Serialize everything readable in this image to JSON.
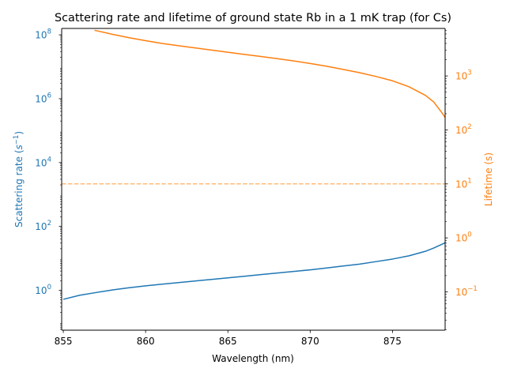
{
  "chart_data": {
    "type": "line",
    "title": "Scattering rate and lifetime of ground state Rb in a 1 mK trap (for Cs)",
    "xlabel": "Wavelength (nm)",
    "ylabel_left_parts": {
      "base": "Scattering rate (",
      "sym": "s",
      "exp": "−1",
      "close": ")"
    },
    "ylabel_right": "Lifetime (s)",
    "xlim": [
      854.9,
      878.2
    ],
    "x_ticks": [
      855,
      860,
      865,
      870,
      875
    ],
    "x_tick_labels": [
      "855",
      "860",
      "865",
      "870",
      "875"
    ],
    "y_left": {
      "scale": "log",
      "ylim_log10": [
        -1.25,
        8.2
      ],
      "ticks": [
        {
          "base": "10",
          "exp": "0",
          "log": 0
        },
        {
          "base": "10",
          "exp": "2",
          "log": 2
        },
        {
          "base": "10",
          "exp": "4",
          "log": 4
        },
        {
          "base": "10",
          "exp": "6",
          "log": 6
        },
        {
          "base": "10",
          "exp": "8",
          "log": 8
        }
      ]
    },
    "y_right": {
      "scale": "log",
      "ylim_log10": [
        -1.71,
        3.88
      ],
      "ticks": [
        {
          "base": "10",
          "exp": "−1",
          "log": -1
        },
        {
          "base": "10",
          "exp": "0",
          "log": 0
        },
        {
          "base": "10",
          "exp": "1",
          "log": 1
        },
        {
          "base": "10",
          "exp": "2",
          "log": 2
        },
        {
          "base": "10",
          "exp": "3",
          "log": 3
        }
      ]
    },
    "series": [
      {
        "axis": "left",
        "color": "#1f77b4",
        "points": [
          [
            855.0,
            0.52
          ],
          [
            856.0,
            0.7
          ],
          [
            857.0,
            0.85
          ],
          [
            858.0,
            1.03
          ],
          [
            859.0,
            1.2
          ],
          [
            860.0,
            1.38
          ],
          [
            861.0,
            1.55
          ],
          [
            862.0,
            1.74
          ],
          [
            863.0,
            1.95
          ],
          [
            864.0,
            2.19
          ],
          [
            865.0,
            2.45
          ],
          [
            866.0,
            2.75
          ],
          [
            867.0,
            3.1
          ],
          [
            868.0,
            3.47
          ],
          [
            869.0,
            3.89
          ],
          [
            870.0,
            4.37
          ],
          [
            871.0,
            5.0
          ],
          [
            872.0,
            5.75
          ],
          [
            873.0,
            6.6
          ],
          [
            874.0,
            7.9
          ],
          [
            875.0,
            9.5
          ],
          [
            876.0,
            12.0
          ],
          [
            877.0,
            16.6
          ],
          [
            877.5,
            20.9
          ],
          [
            878.0,
            27.5
          ],
          [
            878.2,
            30.9
          ]
        ]
      },
      {
        "axis": "right",
        "color": "#ff7f0e",
        "points": [
          [
            856.9,
            7000
          ],
          [
            857.0,
            6900
          ],
          [
            858.0,
            5900
          ],
          [
            859.0,
            5100
          ],
          [
            860.0,
            4500
          ],
          [
            861.0,
            4000
          ],
          [
            862.0,
            3630
          ],
          [
            863.0,
            3310
          ],
          [
            864.0,
            3020
          ],
          [
            865.0,
            2750
          ],
          [
            866.0,
            2510
          ],
          [
            867.0,
            2290
          ],
          [
            868.0,
            2090
          ],
          [
            869.0,
            1900
          ],
          [
            870.0,
            1700
          ],
          [
            871.0,
            1510
          ],
          [
            872.0,
            1320
          ],
          [
            873.0,
            1150
          ],
          [
            874.0,
            977
          ],
          [
            875.0,
            813
          ],
          [
            876.0,
            631
          ],
          [
            877.0,
            437
          ],
          [
            877.5,
            331
          ],
          [
            878.0,
            209
          ],
          [
            878.2,
            170
          ]
        ]
      },
      {
        "axis": "right",
        "color": "#ffbb78",
        "dashed": true,
        "points": [
          [
            854.9,
            10
          ],
          [
            878.2,
            10
          ]
        ]
      }
    ]
  }
}
